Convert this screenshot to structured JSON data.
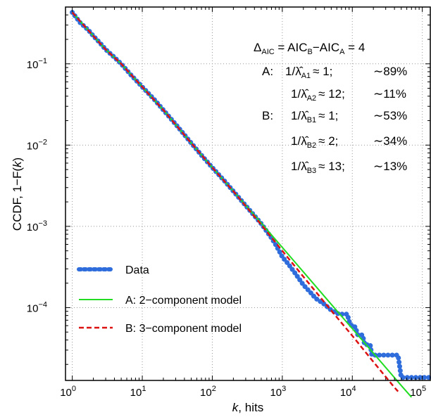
{
  "chart_data": {
    "type": "line",
    "xscale": "log",
    "yscale": "log",
    "xlim": [
      0.8,
      130000
    ],
    "ylim": [
      1.27e-05,
      0.5
    ],
    "grid": true,
    "xlabel_var": "k",
    "xlabel_rest": ", hits",
    "ylabel_pre": "CCDF, 1−F(",
    "ylabel_var": "k",
    "ylabel_post": ")",
    "xticks": [
      {
        "value": 1,
        "base": "10",
        "exp": "0"
      },
      {
        "value": 10,
        "base": "10",
        "exp": "1"
      },
      {
        "value": 100,
        "base": "10",
        "exp": "2"
      },
      {
        "value": 1000,
        "base": "10",
        "exp": "3"
      },
      {
        "value": 10000,
        "base": "10",
        "exp": "4"
      },
      {
        "value": 100000,
        "base": "10",
        "exp": "5"
      }
    ],
    "yticks": [
      {
        "value": 0.1,
        "base": "10",
        "exp": "−1"
      },
      {
        "value": 0.01,
        "base": "10",
        "exp": "−2"
      },
      {
        "value": 0.001,
        "base": "10",
        "exp": "−3"
      },
      {
        "value": 0.0001,
        "base": "10",
        "exp": "−4"
      }
    ],
    "legend_position": "bottom-left",
    "series": [
      {
        "name": "Data",
        "style": "dotted",
        "color": "#2f6ddc",
        "x": [
          1,
          1.3,
          1.7,
          2,
          2.5,
          3,
          4,
          5,
          7,
          10,
          15,
          20,
          30,
          50,
          70,
          100,
          150,
          200,
          300,
          500,
          700,
          800,
          900,
          1000,
          1200,
          1500,
          2000,
          2500,
          3000,
          4000,
          5000,
          6000,
          7000,
          7500,
          8500,
          9000,
          10000,
          11000,
          12000,
          13000,
          14000,
          15000,
          16000,
          17000,
          18000,
          19000,
          20000,
          21000,
          23000,
          25000,
          30000,
          35000,
          40000,
          45000,
          50000,
          55000,
          60000,
          70000,
          80000,
          90000,
          100000,
          110000,
          120000,
          130000
        ],
        "y": [
          0.43,
          0.32,
          0.26,
          0.22,
          0.18,
          0.15,
          0.12,
          0.1,
          0.072,
          0.052,
          0.036,
          0.027,
          0.018,
          0.0106,
          0.0075,
          0.0053,
          0.0036,
          0.0027,
          0.0018,
          0.00108,
          0.00072,
          0.0006,
          0.0005,
          0.00042,
          0.00035,
          0.00027,
          0.00019,
          0.000155,
          0.00013,
          0.00011,
          9.3e-05,
          8.5e-05,
          8.3e-05,
          8.3e-05,
          8.3e-05,
          6.8e-05,
          5.8e-05,
          5.8e-05,
          4.6e-05,
          4.6e-05,
          4.6e-05,
          3.5e-05,
          3.5e-05,
          3.5e-05,
          3.5e-05,
          2.6e-05,
          2.6e-05,
          2.6e-05,
          2.6e-05,
          2.6e-05,
          2.6e-05,
          2.6e-05,
          2.6e-05,
          2.6e-05,
          1.38e-05,
          1.38e-05,
          1.38e-05,
          1.38e-05,
          1.38e-05,
          1.38e-05,
          1.38e-05,
          1.38e-05,
          1.38e-05,
          1.38e-05
        ]
      },
      {
        "name": "A: 2−component model",
        "style": "solid",
        "color": "#22dd22",
        "x": [
          1,
          2,
          3,
          5,
          10,
          20,
          50,
          100,
          200,
          500,
          1000,
          2000,
          5000,
          10000,
          20000,
          50000,
          70000
        ],
        "y": [
          0.43,
          0.22,
          0.15,
          0.1,
          0.052,
          0.027,
          0.0106,
          0.0053,
          0.0027,
          0.0011,
          0.00055,
          0.000275,
          0.00011,
          5.5e-05,
          2.75e-05,
          1.1e-05,
          7.9e-06
        ]
      },
      {
        "name": "B: 3−component model",
        "style": "dashed",
        "color": "#dd1111",
        "x": [
          1,
          2,
          3,
          5,
          10,
          20,
          50,
          100,
          200,
          500,
          1000,
          2000,
          5000,
          10000,
          20000,
          40000,
          45000
        ],
        "y": [
          0.43,
          0.22,
          0.15,
          0.1,
          0.052,
          0.027,
          0.0106,
          0.0053,
          0.0027,
          0.00105,
          0.0005,
          0.00024,
          9.2e-05,
          4.5e-05,
          2.15e-05,
          1.04e-05,
          9.3e-06
        ]
      }
    ],
    "annotations": {
      "delta_label": "Δ",
      "delta_sub": "AIC",
      "delta_eq": " = AIC",
      "delta_sub_b": "B",
      "delta_minus": "−AIC",
      "delta_sub_a": "A",
      "delta_value": " = 4",
      "model_a_tag": "A:",
      "model_b_tag": "B:",
      "rows": [
        {
          "sub": "A1",
          "approx": "≈ 1;",
          "pct": "∼89%"
        },
        {
          "sub": "A2",
          "approx": "≈ 12;",
          "pct": "∼11%"
        },
        {
          "sub": "B1",
          "approx": "≈ 1;",
          "pct": "∼53%"
        },
        {
          "sub": "B2",
          "approx": "≈ 2;",
          "pct": "∼34%"
        },
        {
          "sub": "B3",
          "approx": "≈ 13;",
          "pct": "∼13%"
        }
      ],
      "inv_prefix": "1/",
      "lambda_hat": "λ̂"
    }
  }
}
